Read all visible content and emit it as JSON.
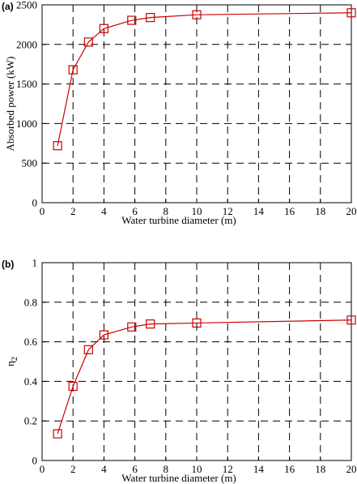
{
  "chart_data": [
    {
      "panel_label": "(a)",
      "type": "line",
      "xlabel": "Water turbine diameter (m)",
      "ylabel": "Absorbed power (kW)",
      "xlim": [
        0,
        20
      ],
      "ylim": [
        0,
        2500
      ],
      "xticks": [
        "0",
        "2",
        "4",
        "6",
        "8",
        "10",
        "12",
        "14",
        "16",
        "18",
        "20"
      ],
      "yticks": [
        "0",
        "500",
        "1000",
        "1500",
        "2000",
        "2500"
      ],
      "grid": true,
      "series": [
        {
          "color": "#cc0000",
          "marker": "open-square",
          "x": [
            1,
            2,
            3,
            4,
            5.8,
            7,
            10,
            20
          ],
          "y": [
            720,
            1680,
            2030,
            2200,
            2305,
            2340,
            2375,
            2400
          ]
        }
      ]
    },
    {
      "panel_label": "(b)",
      "type": "line",
      "xlabel": "Water turbine diameter (m)",
      "ylabel": "η",
      "ylabel_sub": "2",
      "xlim": [
        0,
        20
      ],
      "ylim": [
        0,
        1
      ],
      "xticks": [
        "0",
        "2",
        "4",
        "6",
        "8",
        "10",
        "12",
        "14",
        "16",
        "18",
        "20"
      ],
      "yticks": [
        "0",
        "0.2",
        "0.4",
        "0.6",
        "0.8",
        "1"
      ],
      "grid": true,
      "series": [
        {
          "color": "#cc0000",
          "marker": "open-square",
          "x": [
            1,
            2,
            3,
            4,
            5.8,
            7,
            10,
            20
          ],
          "y": [
            0.135,
            0.375,
            0.56,
            0.635,
            0.675,
            0.69,
            0.695,
            0.71
          ]
        }
      ]
    }
  ]
}
